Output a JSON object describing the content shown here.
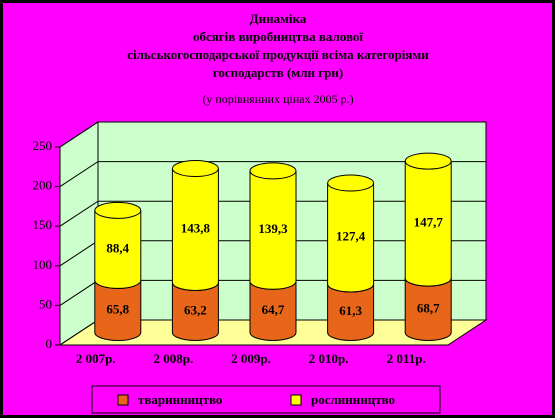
{
  "chart_data": {
    "type": "bar3d_stacked",
    "title": [
      "Динаміка",
      "обсягів виробництва валової",
      "сільськогосподарської продукції всіма категоріями",
      "господарств (млн грн)"
    ],
    "subtitle": "(у порівнянних цінах 2005 р.)",
    "categories": [
      "2 007р.",
      "2 008р.",
      "2 009р.",
      "2 010р.",
      "2 011р."
    ],
    "series": [
      {
        "name": "тваринництво",
        "color": "#e8661a",
        "values": [
          65.8,
          63.2,
          64.7,
          61.3,
          68.7
        ],
        "value_labels": [
          "65,8",
          "63,2",
          "64,7",
          "61,3",
          "68,7"
        ]
      },
      {
        "name": "рослинництво",
        "color": "#ffff00",
        "values": [
          88.4,
          143.8,
          139.3,
          127.4,
          147.7
        ],
        "value_labels": [
          "88,4",
          "143,8",
          "139,3",
          "127,4",
          "147,7"
        ]
      }
    ],
    "ylim": [
      0,
      250
    ],
    "yticks": [
      0,
      50,
      100,
      150,
      200,
      250
    ],
    "grid": true,
    "legend": "bottom"
  }
}
